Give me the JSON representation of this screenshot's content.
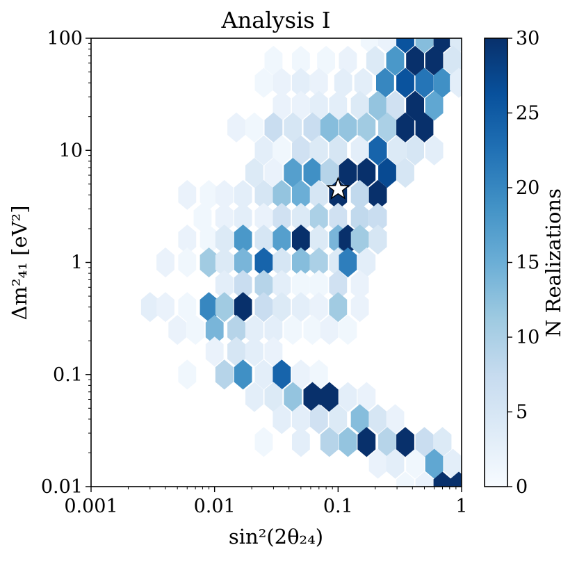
{
  "chart_data": {
    "type": "heatmap",
    "subtype": "hexbin",
    "title": "Analysis I",
    "xlabel": "sin²(2θ₂₄)",
    "ylabel": "Δm²₄₁ [eV²]",
    "xscale": "log",
    "yscale": "log",
    "xlim": [
      0.001,
      1
    ],
    "ylim": [
      0.01,
      100
    ],
    "xticks": [
      {
        "value": 0.001,
        "label": "0.001"
      },
      {
        "value": 0.01,
        "label": "0.01"
      },
      {
        "value": 0.1,
        "label": "0.1"
      },
      {
        "value": 1,
        "label": "1"
      }
    ],
    "yticks": [
      {
        "value": 0.01,
        "label": "0.01"
      },
      {
        "value": 0.1,
        "label": "0.1"
      },
      {
        "value": 1,
        "label": "1"
      },
      {
        "value": 10,
        "label": "10"
      },
      {
        "value": 100,
        "label": "100"
      }
    ],
    "colorbar": {
      "label": "N Realizations",
      "colormap": "Blues",
      "range": [
        0,
        30
      ],
      "ticks": [
        0,
        5,
        10,
        15,
        20,
        25,
        30
      ],
      "tick_labels": [
        "0",
        "5",
        "10",
        "15",
        "20",
        "25",
        "30"
      ]
    },
    "marker": {
      "shape": "star",
      "x": 0.1,
      "y": 4.5
    },
    "bins": [
      [
        0.18,
        100,
        1
      ],
      [
        0.25,
        100,
        2
      ],
      [
        0.35,
        100,
        26
      ],
      [
        0.5,
        100,
        13
      ],
      [
        0.7,
        100,
        30
      ],
      [
        0.95,
        100,
        4
      ],
      [
        0.03,
        63,
        1
      ],
      [
        0.05,
        63,
        1
      ],
      [
        0.08,
        63,
        1
      ],
      [
        0.12,
        63,
        2
      ],
      [
        0.2,
        63,
        4
      ],
      [
        0.29,
        63,
        18
      ],
      [
        0.42,
        63,
        30
      ],
      [
        0.6,
        63,
        30
      ],
      [
        0.85,
        63,
        5
      ],
      [
        0.025,
        40,
        1
      ],
      [
        0.035,
        40,
        2
      ],
      [
        0.05,
        40,
        3
      ],
      [
        0.07,
        40,
        2
      ],
      [
        0.11,
        40,
        3
      ],
      [
        0.16,
        40,
        3
      ],
      [
        0.24,
        40,
        20
      ],
      [
        0.35,
        40,
        26
      ],
      [
        0.5,
        40,
        22
      ],
      [
        0.7,
        40,
        19
      ],
      [
        0.95,
        40,
        3
      ],
      [
        0.035,
        25,
        2
      ],
      [
        0.05,
        25,
        2
      ],
      [
        0.07,
        25,
        3
      ],
      [
        0.1,
        25,
        3
      ],
      [
        0.15,
        25,
        4
      ],
      [
        0.21,
        25,
        12
      ],
      [
        0.29,
        25,
        6
      ],
      [
        0.42,
        25,
        30
      ],
      [
        0.6,
        25,
        16
      ],
      [
        0.015,
        16,
        2
      ],
      [
        0.021,
        16,
        1
      ],
      [
        0.03,
        16,
        7
      ],
      [
        0.043,
        16,
        5
      ],
      [
        0.062,
        16,
        7
      ],
      [
        0.085,
        16,
        13
      ],
      [
        0.12,
        16,
        12
      ],
      [
        0.17,
        16,
        11
      ],
      [
        0.25,
        16,
        10
      ],
      [
        0.35,
        16,
        30
      ],
      [
        0.5,
        16,
        30
      ],
      [
        0.025,
        10,
        3
      ],
      [
        0.035,
        10,
        1
      ],
      [
        0.05,
        10,
        6
      ],
      [
        0.07,
        10,
        4
      ],
      [
        0.1,
        10,
        5
      ],
      [
        0.15,
        10,
        3
      ],
      [
        0.21,
        10,
        24
      ],
      [
        0.3,
        10,
        4
      ],
      [
        0.42,
        10,
        5
      ],
      [
        0.6,
        10,
        3
      ],
      [
        0.021,
        6.3,
        4
      ],
      [
        0.03,
        6.3,
        2
      ],
      [
        0.043,
        6.3,
        17
      ],
      [
        0.062,
        6.3,
        19
      ],
      [
        0.085,
        6.3,
        9
      ],
      [
        0.12,
        6.3,
        30
      ],
      [
        0.17,
        6.3,
        30
      ],
      [
        0.25,
        6.3,
        27
      ],
      [
        0.35,
        6.3,
        5
      ],
      [
        0.006,
        4,
        2
      ],
      [
        0.009,
        4,
        1
      ],
      [
        0.012,
        4,
        2
      ],
      [
        0.017,
        4,
        3
      ],
      [
        0.025,
        4,
        5
      ],
      [
        0.035,
        4,
        12
      ],
      [
        0.05,
        4,
        15
      ],
      [
        0.07,
        4,
        5
      ],
      [
        0.1,
        4,
        30
      ],
      [
        0.15,
        4,
        8
      ],
      [
        0.21,
        4,
        30
      ],
      [
        0.008,
        2.5,
        1
      ],
      [
        0.012,
        2.5,
        2
      ],
      [
        0.017,
        2.5,
        3
      ],
      [
        0.025,
        2.5,
        2
      ],
      [
        0.035,
        2.5,
        6
      ],
      [
        0.05,
        2.5,
        4
      ],
      [
        0.07,
        2.5,
        10
      ],
      [
        0.1,
        2.5,
        6
      ],
      [
        0.15,
        2.5,
        8
      ],
      [
        0.21,
        2.5,
        7
      ],
      [
        0.006,
        1.6,
        2
      ],
      [
        0.009,
        1.6,
        1
      ],
      [
        0.012,
        1.6,
        4
      ],
      [
        0.017,
        1.6,
        18
      ],
      [
        0.025,
        1.6,
        5
      ],
      [
        0.035,
        1.6,
        17
      ],
      [
        0.05,
        1.6,
        30
      ],
      [
        0.07,
        1.6,
        4
      ],
      [
        0.1,
        1.6,
        14
      ],
      [
        0.12,
        1.6,
        30
      ],
      [
        0.15,
        1.6,
        11
      ],
      [
        0.21,
        1.6,
        5
      ],
      [
        0.004,
        1,
        2
      ],
      [
        0.006,
        1,
        1
      ],
      [
        0.009,
        1,
        11
      ],
      [
        0.012,
        1,
        4
      ],
      [
        0.017,
        1,
        14
      ],
      [
        0.025,
        1,
        24
      ],
      [
        0.035,
        1,
        5
      ],
      [
        0.05,
        1,
        13
      ],
      [
        0.07,
        1,
        10
      ],
      [
        0.1,
        1,
        4
      ],
      [
        0.12,
        1,
        21
      ],
      [
        0.17,
        1,
        3
      ],
      [
        0.012,
        0.63,
        3
      ],
      [
        0.017,
        0.63,
        7
      ],
      [
        0.025,
        0.63,
        9
      ],
      [
        0.035,
        0.63,
        3
      ],
      [
        0.05,
        0.63,
        1
      ],
      [
        0.07,
        0.63,
        1
      ],
      [
        0.1,
        0.63,
        6
      ],
      [
        0.15,
        0.63,
        2
      ],
      [
        0.003,
        0.4,
        3
      ],
      [
        0.004,
        0.4,
        2
      ],
      [
        0.006,
        0.4,
        1
      ],
      [
        0.009,
        0.4,
        20
      ],
      [
        0.012,
        0.4,
        11
      ],
      [
        0.017,
        0.4,
        30
      ],
      [
        0.025,
        0.4,
        7
      ],
      [
        0.035,
        0.4,
        4
      ],
      [
        0.05,
        0.4,
        3
      ],
      [
        0.07,
        0.4,
        2
      ],
      [
        0.1,
        0.4,
        11
      ],
      [
        0.15,
        0.4,
        2
      ],
      [
        0.005,
        0.25,
        2
      ],
      [
        0.007,
        0.25,
        1
      ],
      [
        0.01,
        0.25,
        14
      ],
      [
        0.015,
        0.25,
        9
      ],
      [
        0.021,
        0.25,
        3
      ],
      [
        0.03,
        0.25,
        3
      ],
      [
        0.043,
        0.25,
        1
      ],
      [
        0.062,
        0.25,
        1
      ],
      [
        0.085,
        0.25,
        2
      ],
      [
        0.12,
        0.25,
        1
      ],
      [
        0.01,
        0.16,
        2
      ],
      [
        0.015,
        0.16,
        5
      ],
      [
        0.021,
        0.16,
        3
      ],
      [
        0.03,
        0.16,
        2
      ],
      [
        0.006,
        0.1,
        1
      ],
      [
        0.012,
        0.1,
        9
      ],
      [
        0.017,
        0.1,
        19
      ],
      [
        0.025,
        0.1,
        3
      ],
      [
        0.035,
        0.1,
        24
      ],
      [
        0.05,
        0.1,
        2
      ],
      [
        0.07,
        0.1,
        1
      ],
      [
        0.021,
        0.063,
        3
      ],
      [
        0.03,
        0.063,
        4
      ],
      [
        0.043,
        0.063,
        12
      ],
      [
        0.062,
        0.063,
        30
      ],
      [
        0.085,
        0.063,
        30
      ],
      [
        0.12,
        0.063,
        3
      ],
      [
        0.17,
        0.063,
        2
      ],
      [
        0.035,
        0.04,
        3
      ],
      [
        0.05,
        0.04,
        3
      ],
      [
        0.07,
        0.04,
        6
      ],
      [
        0.1,
        0.04,
        4
      ],
      [
        0.15,
        0.04,
        13
      ],
      [
        0.21,
        0.04,
        5
      ],
      [
        0.29,
        0.04,
        2
      ],
      [
        0.025,
        0.025,
        1
      ],
      [
        0.05,
        0.025,
        3
      ],
      [
        0.085,
        0.025,
        9
      ],
      [
        0.12,
        0.025,
        12
      ],
      [
        0.17,
        0.025,
        30
      ],
      [
        0.25,
        0.025,
        9
      ],
      [
        0.35,
        0.025,
        30
      ],
      [
        0.5,
        0.025,
        7
      ],
      [
        0.7,
        0.025,
        4
      ],
      [
        0.21,
        0.016,
        2
      ],
      [
        0.29,
        0.016,
        3
      ],
      [
        0.42,
        0.016,
        1
      ],
      [
        0.6,
        0.016,
        16
      ],
      [
        0.85,
        0.016,
        3
      ],
      [
        0.35,
        0.01,
        1
      ],
      [
        0.5,
        0.01,
        2
      ],
      [
        0.7,
        0.01,
        30
      ],
      [
        0.95,
        0.01,
        30
      ]
    ]
  }
}
